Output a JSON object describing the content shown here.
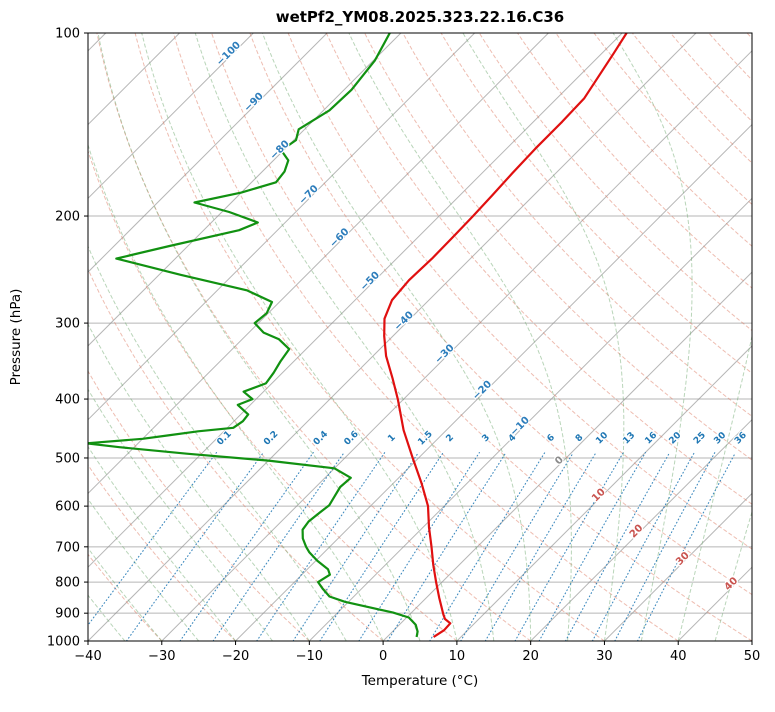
{
  "chart_data": {
    "type": "line",
    "subtype": "skew-t-log-p",
    "title": "wetPf2_YM08.2025.323.22.16.C36",
    "xlabel": "Temperature (°C)",
    "ylabel": "Pressure (hPa)",
    "x_range": [
      -40,
      50
    ],
    "pressure_range": [
      1000,
      100
    ],
    "pressure_scale": "log",
    "skew": "45deg",
    "grid_on": true,
    "grid_color": "#8f8f8f",
    "x_ticks": {
      "values": [
        -40,
        -30,
        -20,
        -10,
        0,
        10,
        20,
        30,
        40,
        50
      ],
      "labels": [
        "−40",
        "−30",
        "−20",
        "−10",
        "0",
        "10",
        "20",
        "30",
        "40",
        "50"
      ]
    },
    "p_ticks": {
      "values": [
        100,
        200,
        300,
        400,
        500,
        600,
        700,
        800,
        900,
        1000
      ],
      "labels": [
        "100",
        "200",
        "300",
        "400",
        "500",
        "600",
        "700",
        "800",
        "900",
        "1000"
      ]
    },
    "pressure_gridlines": [
      100,
      200,
      300,
      400,
      500,
      600,
      700,
      800,
      900,
      1000
    ],
    "temperature_profile": {
      "name": "temperature",
      "color": "#e01010",
      "points_p_T": [
        [
          985,
          6.3
        ],
        [
          960,
          6.8
        ],
        [
          935,
          6.7
        ],
        [
          920,
          5.4
        ],
        [
          905,
          4.6
        ],
        [
          850,
          1.8
        ],
        [
          800,
          -0.8
        ],
        [
          750,
          -3.5
        ],
        [
          700,
          -6.2
        ],
        [
          650,
          -9.2
        ],
        [
          600,
          -12.2
        ],
        [
          550,
          -16.2
        ],
        [
          500,
          -20.8
        ],
        [
          450,
          -25.8
        ],
        [
          400,
          -30.8
        ],
        [
          370,
          -34.3
        ],
        [
          340,
          -38.2
        ],
        [
          315,
          -41.2
        ],
        [
          295,
          -43.5
        ],
        [
          275,
          -45.0
        ],
        [
          255,
          -45.4
        ],
        [
          235,
          -45.2
        ],
        [
          215,
          -45.3
        ],
        [
          200,
          -45.4
        ],
        [
          185,
          -45.6
        ],
        [
          170,
          -45.9
        ],
        [
          155,
          -46.1
        ],
        [
          140,
          -46.1
        ],
        [
          128,
          -46.3
        ],
        [
          118,
          -47.3
        ],
        [
          108,
          -48.4
        ],
        [
          100,
          -49.4
        ]
      ]
    },
    "dewpoint_profile": {
      "name": "dewpoint",
      "color": "#119111",
      "points_p_T": [
        [
          985,
          4.0
        ],
        [
          965,
          3.4
        ],
        [
          940,
          2.2
        ],
        [
          915,
          0.3
        ],
        [
          898,
          -2.5
        ],
        [
          880,
          -6.5
        ],
        [
          862,
          -10.5
        ],
        [
          845,
          -13.3
        ],
        [
          820,
          -15.3
        ],
        [
          800,
          -16.8
        ],
        [
          778,
          -16.2
        ],
        [
          762,
          -17.2
        ],
        [
          738,
          -19.8
        ],
        [
          715,
          -22.0
        ],
        [
          700,
          -23.2
        ],
        [
          678,
          -24.8
        ],
        [
          656,
          -26.0
        ],
        [
          636,
          -26.3
        ],
        [
          615,
          -26.0
        ],
        [
          598,
          -25.7
        ],
        [
          578,
          -26.2
        ],
        [
          558,
          -26.7
        ],
        [
          539,
          -26.5
        ],
        [
          520,
          -30.0
        ],
        [
          505,
          -40.0
        ],
        [
          492,
          -52.0
        ],
        [
          480,
          -62.0
        ],
        [
          473,
          -67.0
        ],
        [
          465,
          -60.0
        ],
        [
          459,
          -57.0
        ],
        [
          452,
          -53.5
        ],
        [
          446,
          -49.2
        ],
        [
          435,
          -48.8
        ],
        [
          424,
          -49.0
        ],
        [
          409,
          -51.7
        ],
        [
          400,
          -50.5
        ],
        [
          389,
          -52.7
        ],
        [
          377,
          -50.8
        ],
        [
          362,
          -51.2
        ],
        [
          347,
          -51.8
        ],
        [
          331,
          -52.3
        ],
        [
          319,
          -55.0
        ],
        [
          311,
          -58.0
        ],
        [
          300,
          -60.5
        ],
        [
          289,
          -60.2
        ],
        [
          277,
          -61.0
        ],
        [
          265,
          -66.0
        ],
        [
          250,
          -77.0
        ],
        [
          235,
          -88.0
        ],
        [
          224,
          -82.5
        ],
        [
          211,
          -75.2
        ],
        [
          205,
          -73.7
        ],
        [
          197,
          -79.0
        ],
        [
          190,
          -85.0
        ],
        [
          183,
          -80.0
        ],
        [
          176,
          -76.7
        ],
        [
          169,
          -77.0
        ],
        [
          162,
          -78.0
        ],
        [
          156,
          -80.3
        ],
        [
          150,
          -79.7
        ],
        [
          144,
          -80.8
        ],
        [
          134,
          -79.2
        ],
        [
          124,
          -79.0
        ],
        [
          111,
          -79.8
        ],
        [
          100,
          -81.5
        ]
      ]
    },
    "isotherms": {
      "min": -120,
      "max": 50,
      "step": 10,
      "color": "#8f8f8f",
      "label_color_negative": "#2e7ebc",
      "label_color_zero": "#8a8a8a",
      "label_color_positive": "#c9534f",
      "labels": [
        {
          "t": -100,
          "p": 109
        },
        {
          "t": -90,
          "p": 131
        },
        {
          "t": -80,
          "p": 157
        },
        {
          "t": -70,
          "p": 186
        },
        {
          "t": -60,
          "p": 219
        },
        {
          "t": -50,
          "p": 258
        },
        {
          "t": -40,
          "p": 300
        },
        {
          "t": -30,
          "p": 340
        },
        {
          "t": -20,
          "p": 390
        },
        {
          "t": -10,
          "p": 447
        },
        {
          "t": 0,
          "p": 509
        },
        {
          "t": 10,
          "p": 580
        },
        {
          "t": 20,
          "p": 665
        },
        {
          "t": 30,
          "p": 738
        },
        {
          "t": 40,
          "p": 812
        }
      ]
    },
    "dry_adiabats": {
      "min": -40,
      "max": 190,
      "step": 10,
      "color": "#dd7b63"
    },
    "moist_adiabats": {
      "min": -40,
      "max": 50,
      "step": 5,
      "color": "#74ab74"
    },
    "mixing_ratio_lines": {
      "values": [
        0.1,
        0.2,
        0.4,
        0.6,
        1,
        1.5,
        2,
        3,
        4,
        6,
        8,
        10,
        13,
        16,
        20,
        25,
        30,
        36
      ],
      "color": "#1f77b4",
      "top_p": 490,
      "label_p": 467
    }
  }
}
